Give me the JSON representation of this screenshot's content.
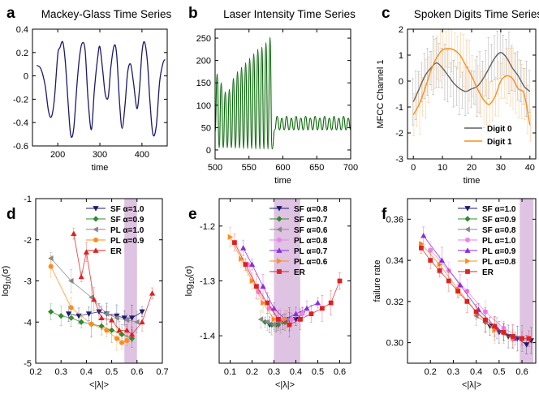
{
  "chart_data": [
    {
      "panel": "a",
      "type": "line",
      "title": "Mackey-Glass Time Series",
      "xlabel": "time",
      "ylabel": "",
      "xlim": [
        140,
        460
      ],
      "ylim": [
        -0.6,
        0.4
      ],
      "xticks": [
        200,
        300,
        400
      ],
      "yticks": [
        -0.6,
        -0.4,
        -0.2,
        0,
        0.2,
        0.4
      ],
      "ytick_labels": [
        "-0.6",
        "-0.4",
        "-0.2",
        "0",
        "0.2",
        "0.4"
      ],
      "grid": false,
      "legend": "none",
      "color": "#1a1a6e",
      "series": [
        {
          "x": [
            150,
            160,
            170,
            178,
            185,
            192,
            200,
            205,
            212,
            218,
            225,
            231,
            238,
            246,
            252,
            258,
            265,
            272,
            280,
            287,
            295,
            300,
            307,
            313,
            320,
            326,
            334,
            340,
            347,
            353,
            360,
            366,
            373,
            380,
            388,
            394,
            400,
            406,
            413,
            419,
            426,
            434,
            442,
            450,
            455
          ],
          "y": [
            0.09,
            0.06,
            -0.08,
            -0.3,
            -0.35,
            -0.2,
            0.18,
            0.24,
            0.29,
            0.12,
            -0.25,
            -0.51,
            -0.45,
            -0.06,
            0.17,
            0.28,
            0.22,
            -0.2,
            -0.46,
            -0.12,
            0.16,
            0.25,
            0.04,
            -0.16,
            -0.18,
            0.07,
            0.26,
            0.18,
            -0.24,
            -0.45,
            -0.24,
            0.03,
            0.1,
            -0.06,
            -0.28,
            -0.12,
            0.2,
            0.29,
            0.12,
            -0.22,
            -0.5,
            -0.43,
            -0.05,
            0.11,
            0.14
          ]
        }
      ]
    },
    {
      "panel": "b",
      "type": "line",
      "title": "Laser Intensity Time Series",
      "xlabel": "time",
      "ylabel": "",
      "xlim": [
        500,
        700
      ],
      "ylim": [
        -20,
        270
      ],
      "xticks": [
        500,
        550,
        600,
        650,
        700
      ],
      "yticks": [
        0,
        50,
        100,
        150,
        200,
        250
      ],
      "ytick_labels": [
        "0",
        "50",
        "100",
        "150",
        "200",
        "250"
      ],
      "grid": false,
      "legend": "none",
      "color": "#006400",
      "series": [
        {
          "note_free": true,
          "peaks": [
            {
              "t": 503,
              "v": 170
            },
            {
              "t": 509,
              "v": 150
            },
            {
              "t": 515,
              "v": 130
            },
            {
              "t": 521,
              "v": 135
            },
            {
              "t": 527,
              "v": 160
            },
            {
              "t": 533,
              "v": 175
            },
            {
              "t": 539,
              "v": 185
            },
            {
              "t": 545,
              "v": 195
            },
            {
              "t": 551,
              "v": 205
            },
            {
              "t": 557,
              "v": 215
            },
            {
              "t": 563,
              "v": 225
            },
            {
              "t": 569,
              "v": 230
            },
            {
              "t": 575,
              "v": 240
            },
            {
              "t": 581,
              "v": 252
            }
          ],
          "troughs": [
            {
              "t": 506,
              "v": 5
            },
            {
              "t": 512,
              "v": 5
            },
            {
              "t": 518,
              "v": 5
            },
            {
              "t": 524,
              "v": 5
            },
            {
              "t": 530,
              "v": 4
            },
            {
              "t": 536,
              "v": 4
            },
            {
              "t": 542,
              "v": 3
            },
            {
              "t": 548,
              "v": 3
            },
            {
              "t": 554,
              "v": 3
            },
            {
              "t": 560,
              "v": 2
            },
            {
              "t": 566,
              "v": 2
            },
            {
              "t": 572,
              "v": 2
            },
            {
              "t": 578,
              "v": 2
            },
            {
              "t": 584,
              "v": 2
            }
          ],
          "tail": {
            "t_start": 588,
            "t_end": 700,
            "period": 7,
            "min": 45,
            "max": 75
          }
        }
      ]
    },
    {
      "panel": "c",
      "type": "line",
      "title": "Spoken Digits Time Series",
      "xlabel": "time",
      "ylabel": "MFCC Channel 1",
      "xlim": [
        -2,
        42
      ],
      "ylim": [
        -3,
        2
      ],
      "xticks": [
        0,
        10,
        20,
        30,
        40
      ],
      "yticks": [
        -3,
        -2,
        -1,
        0,
        1,
        2
      ],
      "ytick_labels": [
        "-3",
        "-2",
        "-1",
        "0",
        "1",
        "2"
      ],
      "grid": false,
      "legend": "bottom-right",
      "series": [
        {
          "name": "Digit 0",
          "color": "#606060",
          "x": [
            0,
            2,
            4,
            6,
            8,
            10,
            12,
            14,
            16,
            18,
            20,
            22,
            24,
            26,
            28,
            30,
            32,
            34,
            36,
            38,
            40
          ],
          "y": [
            -0.8,
            -0.3,
            0.2,
            0.5,
            0.7,
            0.5,
            0.2,
            -0.1,
            -0.3,
            -0.4,
            -0.3,
            -0.2,
            0.1,
            0.5,
            0.9,
            1.1,
            0.9,
            0.5,
            0.2,
            -0.2,
            -0.4
          ]
        },
        {
          "name": "Digit 1",
          "color": "#ff8c1a",
          "x": [
            0,
            2,
            4,
            6,
            8,
            10,
            12,
            14,
            16,
            18,
            20,
            22,
            24,
            26,
            28,
            30,
            32,
            34,
            36,
            38,
            40
          ],
          "y": [
            -1.3,
            -0.9,
            -0.3,
            0.4,
            0.9,
            1.2,
            1.25,
            1.2,
            1.0,
            0.6,
            0.2,
            -0.3,
            -0.7,
            -0.9,
            -0.6,
            0.0,
            0.2,
            0.1,
            -0.3,
            -0.5,
            -1.7
          ]
        }
      ]
    },
    {
      "panel": "d",
      "type": "scatter",
      "title": "",
      "xlabel": "<|λ|>",
      "ylabel": "log10(σ)",
      "xlim": [
        0.2,
        0.7
      ],
      "ylim": [
        -5,
        -1
      ],
      "xticks": [
        0.2,
        0.3,
        0.4,
        0.5,
        0.6,
        0.7
      ],
      "xtick_labels": [
        "0.2",
        "0.3",
        "0.4",
        "0.5",
        "0.6",
        "0.7"
      ],
      "yticks": [
        -5,
        -4,
        -3,
        -2,
        -1
      ],
      "ytick_labels": [
        "-5",
        "-4",
        "-3",
        "-2",
        "-1"
      ],
      "shaded_region": [
        0.55,
        0.6
      ],
      "grid": false,
      "legend": "top-right",
      "series": [
        {
          "name": "SF α=1.0",
          "marker": "triangle-down",
          "color": "#1a1a6e",
          "x": [
            0.33,
            0.37,
            0.41,
            0.45,
            0.48,
            0.52,
            0.55,
            0.58,
            0.62
          ],
          "y": [
            -3.8,
            -3.85,
            -3.8,
            -3.75,
            -3.8,
            -3.85,
            -3.9,
            -3.9,
            -3.75
          ]
        },
        {
          "name": "SF α=0.9",
          "marker": "diamond",
          "color": "#2e8b2e",
          "x": [
            0.26,
            0.3,
            0.34,
            0.38,
            0.42,
            0.46,
            0.5,
            0.54,
            0.58
          ],
          "y": [
            -3.75,
            -3.85,
            -3.9,
            -4.0,
            -4.05,
            -4.1,
            -4.2,
            -4.3,
            -4.4
          ]
        },
        {
          "name": "PL α=1.0",
          "marker": "triangle-left",
          "color": "#888888",
          "x": [
            0.26,
            0.34,
            0.42,
            0.48,
            0.52,
            0.56,
            0.6
          ],
          "y": [
            -2.45,
            -3.0,
            -3.4,
            -3.8,
            -3.9,
            -3.95,
            -4.0
          ]
        },
        {
          "name": "PL α=0.9",
          "marker": "circle",
          "color": "#ff8c1a",
          "x": [
            0.26,
            0.34,
            0.42,
            0.48,
            0.52,
            0.54,
            0.56
          ],
          "y": [
            -2.65,
            -3.65,
            -4.05,
            -4.2,
            -4.4,
            -4.5,
            -4.45
          ]
        },
        {
          "name": "ER",
          "marker": "triangle-up",
          "color": "#e02020",
          "x": [
            0.35,
            0.38,
            0.4,
            0.43,
            0.46,
            0.5,
            0.53,
            0.56,
            0.58,
            0.62,
            0.66
          ],
          "y": [
            -1.85,
            -2.9,
            -2.3,
            -3.45,
            -3.9,
            -3.95,
            -4.2,
            -4.2,
            -4.3,
            -4.0,
            -3.3
          ]
        }
      ]
    },
    {
      "panel": "e",
      "type": "scatter",
      "title": "",
      "xlabel": "<|λ|>",
      "ylabel": "log10(σ)",
      "xlim": [
        0.05,
        0.65
      ],
      "ylim": [
        -1.45,
        -1.15
      ],
      "xticks": [
        0.1,
        0.2,
        0.3,
        0.4,
        0.5,
        0.6
      ],
      "xtick_labels": [
        "0.1",
        "0.2",
        "0.3",
        "0.4",
        "0.5",
        "0.6"
      ],
      "yticks": [
        -1.4,
        -1.3,
        -1.2
      ],
      "ytick_labels": [
        "-1.4",
        "-1.3",
        "-1.2"
      ],
      "shaded_region": [
        0.3,
        0.42
      ],
      "grid": false,
      "legend": "top-right",
      "series": [
        {
          "name": "SF α=0.8",
          "marker": "triangle-down",
          "color": "#1a1a6e",
          "x": [
            0.28,
            0.31,
            0.34,
            0.37,
            0.4,
            0.43
          ],
          "y": [
            -1.38,
            -1.38,
            -1.375,
            -1.37,
            -1.37,
            -1.36
          ]
        },
        {
          "name": "SF α=0.7",
          "marker": "diamond",
          "color": "#2e8b2e",
          "x": [
            0.26,
            0.29,
            0.32,
            0.35,
            0.38
          ],
          "y": [
            -1.375,
            -1.38,
            -1.38,
            -1.375,
            -1.37
          ]
        },
        {
          "name": "SF α=0.6",
          "marker": "triangle-left",
          "color": "#888888",
          "x": [
            0.24,
            0.27,
            0.3,
            0.33,
            0.36
          ],
          "y": [
            -1.37,
            -1.375,
            -1.38,
            -1.375,
            -1.37
          ]
        },
        {
          "name": "PL α=0.8",
          "marker": "circle",
          "color": "#ee82ee",
          "x": [
            0.18,
            0.23,
            0.28,
            0.33,
            0.38,
            0.43
          ],
          "y": [
            -1.27,
            -1.32,
            -1.35,
            -1.37,
            -1.37,
            -1.36
          ]
        },
        {
          "name": "PL α=0.7",
          "marker": "triangle-up",
          "color": "#8a2be2",
          "x": [
            0.16,
            0.2,
            0.25,
            0.3,
            0.35,
            0.4,
            0.45,
            0.5
          ],
          "y": [
            -1.24,
            -1.27,
            -1.31,
            -1.35,
            -1.37,
            -1.36,
            -1.35,
            -1.34
          ]
        },
        {
          "name": "PL α=0.6",
          "marker": "triangle-right",
          "color": "#ff8c1a",
          "x": [
            0.1,
            0.15,
            0.2,
            0.25,
            0.3,
            0.35
          ],
          "y": [
            -1.22,
            -1.26,
            -1.3,
            -1.34,
            -1.37,
            -1.37
          ]
        },
        {
          "name": "ER",
          "marker": "square",
          "color": "#e02020",
          "x": [
            0.12,
            0.17,
            0.22,
            0.27,
            0.32,
            0.37,
            0.42,
            0.47,
            0.52,
            0.56,
            0.6
          ],
          "y": [
            -1.23,
            -1.27,
            -1.31,
            -1.34,
            -1.37,
            -1.38,
            -1.37,
            -1.36,
            -1.35,
            -1.34,
            -1.3
          ]
        }
      ]
    },
    {
      "panel": "f",
      "type": "scatter",
      "title": "",
      "xlabel": "<|λ|>",
      "ylabel": "failure rate",
      "xlim": [
        0.1,
        0.66
      ],
      "ylim": [
        0.29,
        0.37
      ],
      "xticks": [
        0.2,
        0.3,
        0.4,
        0.5,
        0.6
      ],
      "xtick_labels": [
        "0.2",
        "0.3",
        "0.4",
        "0.5",
        "0.6"
      ],
      "yticks": [
        0.3,
        0.32,
        0.34,
        0.36
      ],
      "ytick_labels": [
        "0.30",
        "0.32",
        "0.34",
        "0.36"
      ],
      "shaded_region": [
        0.59,
        0.65
      ],
      "grid": false,
      "legend": "top-right",
      "series": [
        {
          "name": "SF α=1.0",
          "marker": "triangle-down",
          "color": "#1a1a6e",
          "x": [
            0.46,
            0.5,
            0.54,
            0.58,
            0.62,
            0.64
          ],
          "y": [
            0.308,
            0.305,
            0.303,
            0.302,
            0.299,
            0.301
          ]
        },
        {
          "name": "SF α=0.9",
          "marker": "diamond",
          "color": "#2e8b2e",
          "x": [
            0.44,
            0.48,
            0.52,
            0.56,
            0.6
          ],
          "y": [
            0.31,
            0.307,
            0.305,
            0.303,
            0.302
          ]
        },
        {
          "name": "SF α=0.8",
          "marker": "triangle-left",
          "color": "#888888",
          "x": [
            0.4,
            0.44,
            0.48,
            0.52,
            0.56
          ],
          "y": [
            0.313,
            0.31,
            0.307,
            0.305,
            0.303
          ]
        },
        {
          "name": "PL α=1.0",
          "marker": "circle",
          "color": "#ee82ee",
          "x": [
            0.2,
            0.28,
            0.36,
            0.44,
            0.52,
            0.6
          ],
          "y": [
            0.345,
            0.335,
            0.325,
            0.315,
            0.307,
            0.302
          ]
        },
        {
          "name": "PL α=0.9",
          "marker": "triangle-up",
          "color": "#8a2be2",
          "x": [
            0.17,
            0.25,
            0.33,
            0.41,
            0.49,
            0.57
          ],
          "y": [
            0.352,
            0.34,
            0.328,
            0.316,
            0.307,
            0.302
          ]
        },
        {
          "name": "PL α=0.8",
          "marker": "triangle-right",
          "color": "#ff8c1a",
          "x": [
            0.16,
            0.24,
            0.32,
            0.4,
            0.48,
            0.56
          ],
          "y": [
            0.348,
            0.338,
            0.326,
            0.315,
            0.306,
            0.302
          ]
        },
        {
          "name": "ER",
          "marker": "square",
          "color": "#e02020",
          "x": [
            0.16,
            0.2,
            0.24,
            0.28,
            0.32,
            0.36,
            0.4,
            0.44,
            0.48,
            0.52,
            0.56,
            0.6,
            0.63
          ],
          "y": [
            0.346,
            0.34,
            0.335,
            0.33,
            0.325,
            0.32,
            0.315,
            0.311,
            0.308,
            0.305,
            0.303,
            0.302,
            0.302
          ]
        }
      ]
    }
  ]
}
